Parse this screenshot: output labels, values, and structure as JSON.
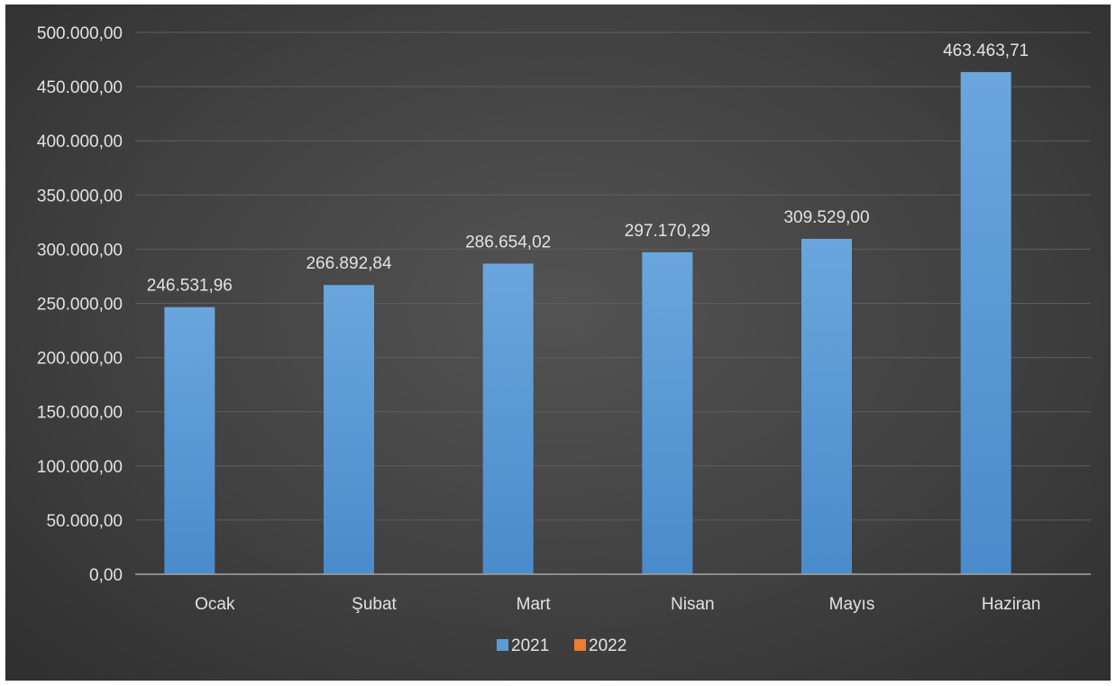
{
  "chart_data": {
    "type": "bar",
    "categories": [
      "Ocak",
      "Şubat",
      "Mart",
      "Nisan",
      "Mayıs",
      "Haziran"
    ],
    "series": [
      {
        "name": "2021",
        "color": "#5b9bd5",
        "values": [
          246531.96,
          266892.84,
          286654.02,
          297170.29,
          309529.0,
          463463.71
        ],
        "labels": [
          "246.531,96",
          "266.892,84",
          "286.654,02",
          "297.170,29",
          "309.529,00",
          "463.463,71"
        ]
      },
      {
        "name": "2022",
        "color": "#ed7d31",
        "values": [
          0,
          0,
          0,
          0,
          0,
          0
        ],
        "labels": []
      }
    ],
    "yticks": [
      0,
      50000,
      100000,
      150000,
      200000,
      250000,
      300000,
      350000,
      400000,
      450000,
      500000
    ],
    "ytick_labels": [
      "0,00",
      "50.000,00",
      "100.000,00",
      "150.000,00",
      "200.000,00",
      "250.000,00",
      "300.000,00",
      "350.000,00",
      "400.000,00",
      "450.000,00",
      "500.000,00"
    ],
    "ylim": [
      0,
      500000
    ],
    "grid": true,
    "legend_position": "bottom",
    "background": "#404040"
  }
}
